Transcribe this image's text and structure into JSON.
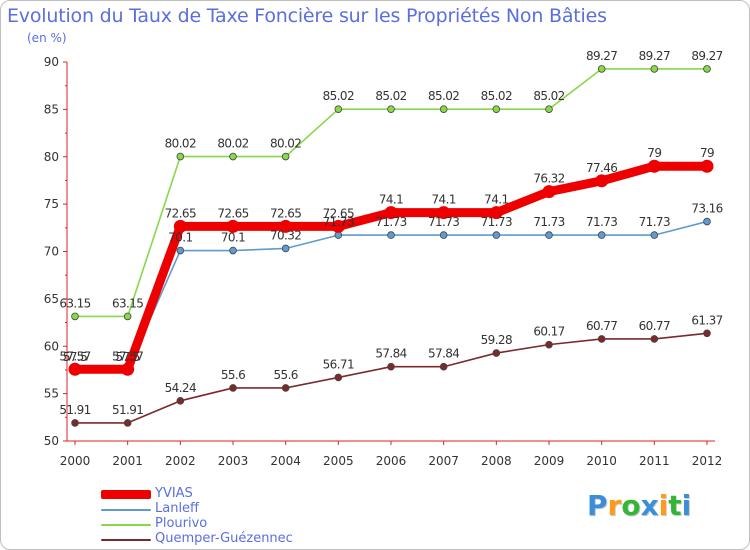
{
  "chart": {
    "title": "Evolution du Taux de Taxe Foncière sur les Propriétés Non Bâties",
    "subtitle": "(en %)"
  },
  "chart_data": {
    "type": "line",
    "title": "Evolution du Taux de Taxe Foncière sur les Propriétés Non Bâties",
    "ylabel": "(en %)",
    "xlabel": "",
    "ylim": [
      50,
      90
    ],
    "yticks": [
      50,
      55,
      60,
      65,
      70,
      75,
      80,
      85,
      90
    ],
    "x": [
      "2000",
      "2001",
      "2002",
      "2003",
      "2004",
      "2005",
      "2006",
      "2007",
      "2008",
      "2009",
      "2010",
      "2011",
      "2012"
    ],
    "grid": false,
    "legend_position": "bottom-left",
    "series": [
      {
        "name": "YVIAS",
        "color": "#ee0000",
        "values": [
          57.57,
          57.57,
          72.65,
          72.65,
          72.65,
          72.65,
          74.1,
          74.1,
          74.1,
          76.32,
          77.46,
          79,
          79
        ],
        "labels": [
          "57.57",
          "57.57",
          "72.65",
          "72.65",
          "72.65",
          "72.65",
          "74.1",
          "74.1",
          "74.1",
          "76.32",
          "77.46",
          "79",
          "79"
        ]
      },
      {
        "name": "Lanleff",
        "color": "#5f9bd0",
        "values": [
          57.5,
          57.5,
          70.1,
          70.1,
          70.32,
          71.73,
          71.73,
          71.73,
          71.73,
          71.73,
          71.73,
          71.73,
          73.16
        ],
        "labels": [
          "57.5",
          "57.5",
          "70.1",
          "70.1",
          "70.32",
          "71.73",
          "71.73",
          "71.73",
          "71.73",
          "71.73",
          "71.73",
          "71.73",
          "73.16"
        ]
      },
      {
        "name": "Plourivo",
        "color": "#88d84a",
        "values": [
          63.15,
          63.15,
          80.02,
          80.02,
          80.02,
          85.02,
          85.02,
          85.02,
          85.02,
          85.02,
          89.27,
          89.27,
          89.27
        ],
        "labels": [
          "63.15",
          "63.15",
          "80.02",
          "80.02",
          "80.02",
          "85.02",
          "85.02",
          "85.02",
          "85.02",
          "85.02",
          "89.27",
          "89.27",
          "89.27"
        ]
      },
      {
        "name": "Quemper-Guézennec",
        "color": "#7a2a2a",
        "values": [
          51.91,
          51.91,
          54.24,
          55.6,
          55.6,
          56.71,
          57.84,
          57.84,
          59.28,
          60.17,
          60.77,
          60.77,
          61.37
        ],
        "labels": [
          "51.91",
          "51.91",
          "54.24",
          "55.6",
          "55.6",
          "56.71",
          "57.84",
          "57.84",
          "59.28",
          "60.17",
          "60.77",
          "60.77",
          "61.37"
        ]
      }
    ]
  },
  "logo": {
    "letters": [
      "P",
      "r",
      "o",
      "x",
      "i",
      "t",
      "i"
    ],
    "colors": [
      "#3a8fd8",
      "#ff9a1a",
      "#35b535",
      "#3a8fd8",
      "#ff9a1a",
      "#35b535",
      "#3a8fd8"
    ]
  }
}
